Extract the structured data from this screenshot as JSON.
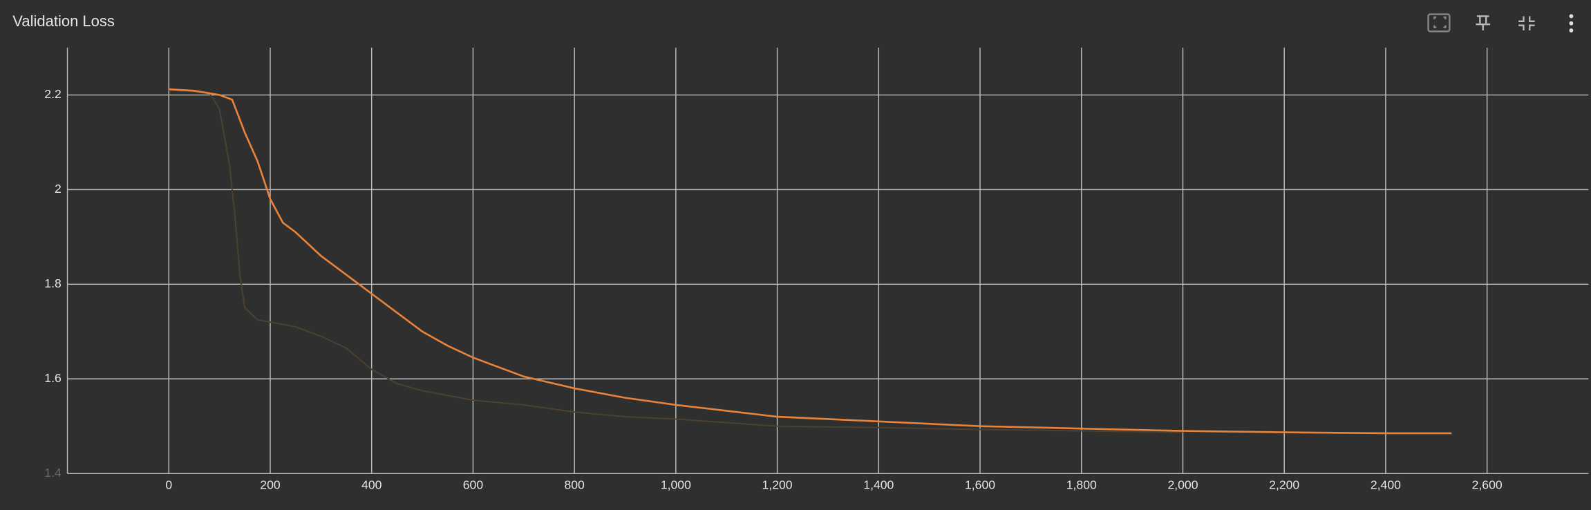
{
  "chart_data": {
    "type": "line",
    "title": "Validation Loss",
    "x_series_x": null,
    "series": [
      {
        "color": "#4b4032",
        "x": [
          0,
          80,
          100,
          120,
          130,
          140,
          150,
          175,
          200,
          250,
          300,
          350,
          400,
          450,
          500,
          600,
          700,
          800,
          900,
          1000,
          1200,
          1400,
          1600,
          1800,
          2000
        ],
        "values": [
          2.21,
          2.205,
          2.17,
          2.05,
          1.95,
          1.82,
          1.75,
          1.725,
          1.72,
          1.71,
          1.69,
          1.665,
          1.62,
          1.59,
          1.575,
          1.555,
          1.545,
          1.53,
          1.52,
          1.515,
          1.5,
          1.497,
          1.493,
          1.49,
          1.487
        ]
      },
      {
        "color": "#e8833a",
        "x": [
          0,
          50,
          100,
          125,
          150,
          175,
          200,
          225,
          250,
          300,
          350,
          400,
          450,
          500,
          550,
          600,
          700,
          800,
          900,
          1000,
          1200,
          1400,
          1600,
          1800,
          2000,
          2200,
          2400,
          2530
        ],
        "values": [
          2.212,
          2.209,
          2.2,
          2.19,
          2.12,
          2.06,
          1.98,
          1.93,
          1.91,
          1.86,
          1.82,
          1.78,
          1.74,
          1.7,
          1.67,
          1.645,
          1.605,
          1.58,
          1.56,
          1.545,
          1.52,
          1.51,
          1.5,
          1.495,
          1.49,
          1.487,
          1.485,
          1.485
        ]
      }
    ],
    "xlim": [
      -200,
      2800
    ],
    "xticks": [
      0,
      {
        "value": 200,
        "label": "200"
      },
      400,
      600,
      800,
      {
        "value": 1000,
        "label": "1,000"
      },
      {
        "value": 1200,
        "label": "1,200"
      },
      {
        "value": 1400,
        "label": "1,400"
      },
      {
        "value": 1600,
        "label": "1,600"
      },
      {
        "value": 1800,
        "label": "1,800"
      },
      {
        "value": 2000,
        "label": "2,000"
      },
      {
        "value": 2200,
        "label": "2,200"
      },
      {
        "value": 2400,
        "label": "2,400"
      },
      {
        "value": 2600,
        "label": "2,600"
      }
    ],
    "ylim": [
      1.4,
      2.3
    ],
    "yticks": [
      1.4,
      1.6,
      1.8,
      2,
      2.2
    ],
    "grid": true
  }
}
